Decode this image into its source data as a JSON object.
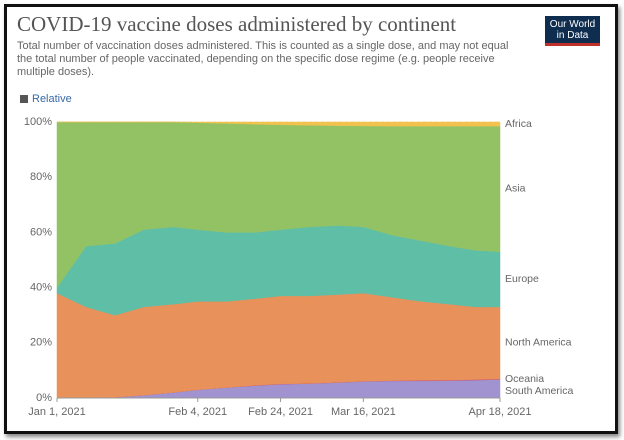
{
  "chart_data": {
    "type": "area",
    "stacked": true,
    "title": "COVID-19 vaccine doses administered by continent",
    "subtitle": "Total number of vaccination doses administered. This is counted as a single dose, and may not equal the total number of people vaccinated, depending on the specific dose regime (e.g. people receive multiple doses).",
    "toggle": "Relative",
    "logo": [
      "Our World",
      "in Data"
    ],
    "x": [
      "2021-01-01",
      "2021-01-08",
      "2021-01-15",
      "2021-01-22",
      "2021-01-29",
      "2021-02-04",
      "2021-02-11",
      "2021-02-18",
      "2021-02-24",
      "2021-03-03",
      "2021-03-10",
      "2021-03-16",
      "2021-03-23",
      "2021-03-30",
      "2021-04-06",
      "2021-04-12",
      "2021-04-18"
    ],
    "xlim": [
      "2021-01-01",
      "2021-04-18"
    ],
    "xticks": [
      {
        "value": "2021-01-01",
        "label": "Jan 1, 2021"
      },
      {
        "value": "2021-02-04",
        "label": "Feb 4, 2021"
      },
      {
        "value": "2021-02-24",
        "label": "Feb 24, 2021"
      },
      {
        "value": "2021-03-16",
        "label": "Mar 16, 2021"
      },
      {
        "value": "2021-04-18",
        "label": "Apr 18, 2021"
      }
    ],
    "ylim": [
      0,
      100
    ],
    "yticks": [
      {
        "value": 0,
        "label": "0%"
      },
      {
        "value": 20,
        "label": "20%"
      },
      {
        "value": 40,
        "label": "40%"
      },
      {
        "value": 60,
        "label": "60%"
      },
      {
        "value": 80,
        "label": "80%"
      },
      {
        "value": 100,
        "label": "100%"
      }
    ],
    "grid": true,
    "legend": "right",
    "series": [
      {
        "name": "South America",
        "color": "#a093d0",
        "label_color": "#7a6bbf",
        "values": [
          0,
          0,
          0.3,
          1,
          2,
          3,
          3.8,
          4.5,
          5,
          5.2,
          5.6,
          6,
          6.2,
          6.2,
          6.3,
          6.5,
          6.7
        ]
      },
      {
        "name": "Oceania",
        "color": "#c8507a",
        "label_color": "#d4548a",
        "values": [
          0,
          0,
          0,
          0,
          0,
          0,
          0,
          0.1,
          0.1,
          0.1,
          0.1,
          0.1,
          0.1,
          0.2,
          0.2,
          0.2,
          0.2
        ]
      },
      {
        "name": "North America",
        "color": "#e8915a",
        "label_color": "#e07f3e",
        "values": [
          38,
          33,
          29.7,
          32,
          32,
          32,
          31.2,
          31.4,
          31.9,
          31.7,
          31.8,
          31.9,
          30.2,
          28.6,
          27.5,
          26.3,
          26.1
        ]
      },
      {
        "name": "Europe",
        "color": "#5ebea6",
        "label_color": "#3aa88c",
        "values": [
          2,
          22,
          26,
          28,
          28,
          26,
          25,
          24,
          24,
          25,
          25,
          24,
          22.5,
          22,
          21,
          20.5,
          20
        ]
      },
      {
        "name": "Asia",
        "color": "#93c265",
        "label_color": "#78ad45",
        "values": [
          60,
          45,
          44,
          39,
          38,
          38.8,
          39.5,
          39.2,
          38,
          36.8,
          36.2,
          36.6,
          39.5,
          41.5,
          43.5,
          45,
          45.5
        ]
      },
      {
        "name": "Africa",
        "color": "#f2c14e",
        "label_color": "#e0a91c",
        "values": [
          0,
          0,
          0,
          0,
          0,
          0.2,
          0.5,
          0.8,
          1,
          1.2,
          1.3,
          1.4,
          1.5,
          1.5,
          1.5,
          1.5,
          1.5
        ]
      }
    ]
  }
}
